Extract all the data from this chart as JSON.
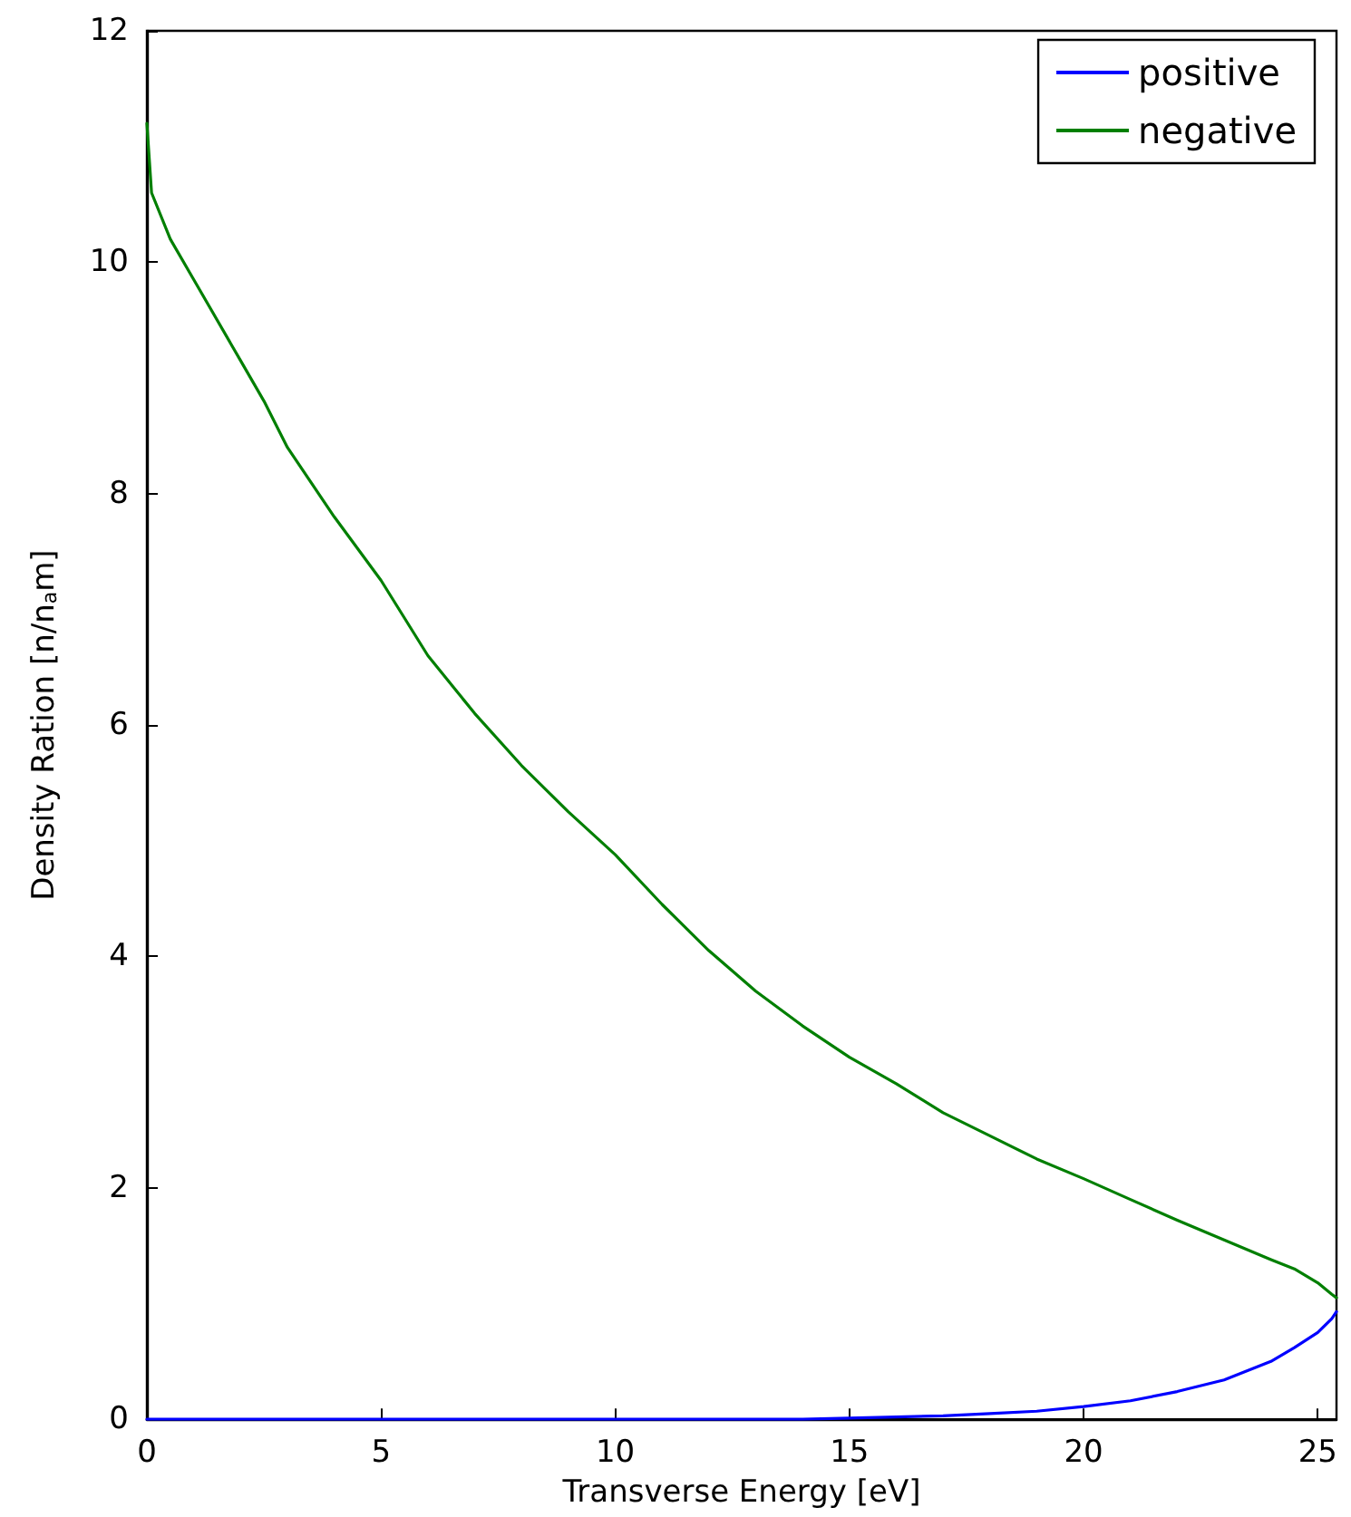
{
  "chart_data": {
    "type": "line",
    "xlabel": "Transverse Energy [eV]",
    "ylabel": "Density Ration [n/n$_{a}$m]",
    "xlim": [
      0,
      25.4
    ],
    "xticks": [
      0,
      5,
      10,
      15,
      20,
      25
    ],
    "ylim": [
      0,
      12
    ],
    "yticks": [
      0,
      2,
      4,
      6,
      8,
      10,
      12
    ],
    "grid": false,
    "legend": "top right",
    "marker": "none",
    "line_style": "solid",
    "series": [
      {
        "name": "positive",
        "color": "#0000ff",
        "x": [
          0,
          5,
          10,
          14,
          15,
          16,
          17,
          18,
          19,
          20,
          21,
          22,
          23,
          24,
          24.5,
          25,
          25.3,
          25.4
        ],
        "values": [
          0,
          0,
          0,
          0,
          0.01,
          0.02,
          0.03,
          0.05,
          0.07,
          0.11,
          0.16,
          0.24,
          0.34,
          0.5,
          0.62,
          0.75,
          0.87,
          0.93
        ]
      },
      {
        "name": "negative",
        "color": "#007f00",
        "x": [
          0,
          0.1,
          0.5,
          1,
          2,
          2.5,
          3,
          4,
          5,
          6,
          7,
          8,
          9,
          10,
          11,
          12,
          13,
          14,
          15,
          16,
          17,
          18,
          19,
          20,
          21,
          22,
          23,
          24,
          24.5,
          25,
          25.3,
          25.4
        ],
        "values": [
          11.2,
          10.6,
          10.2,
          9.85,
          9.15,
          8.8,
          8.4,
          7.8,
          7.25,
          6.6,
          6.1,
          5.65,
          5.25,
          4.88,
          4.45,
          4.05,
          3.7,
          3.4,
          3.13,
          2.9,
          2.65,
          2.45,
          2.25,
          2.08,
          1.9,
          1.72,
          1.55,
          1.38,
          1.3,
          1.18,
          1.08,
          1.05
        ]
      }
    ]
  }
}
